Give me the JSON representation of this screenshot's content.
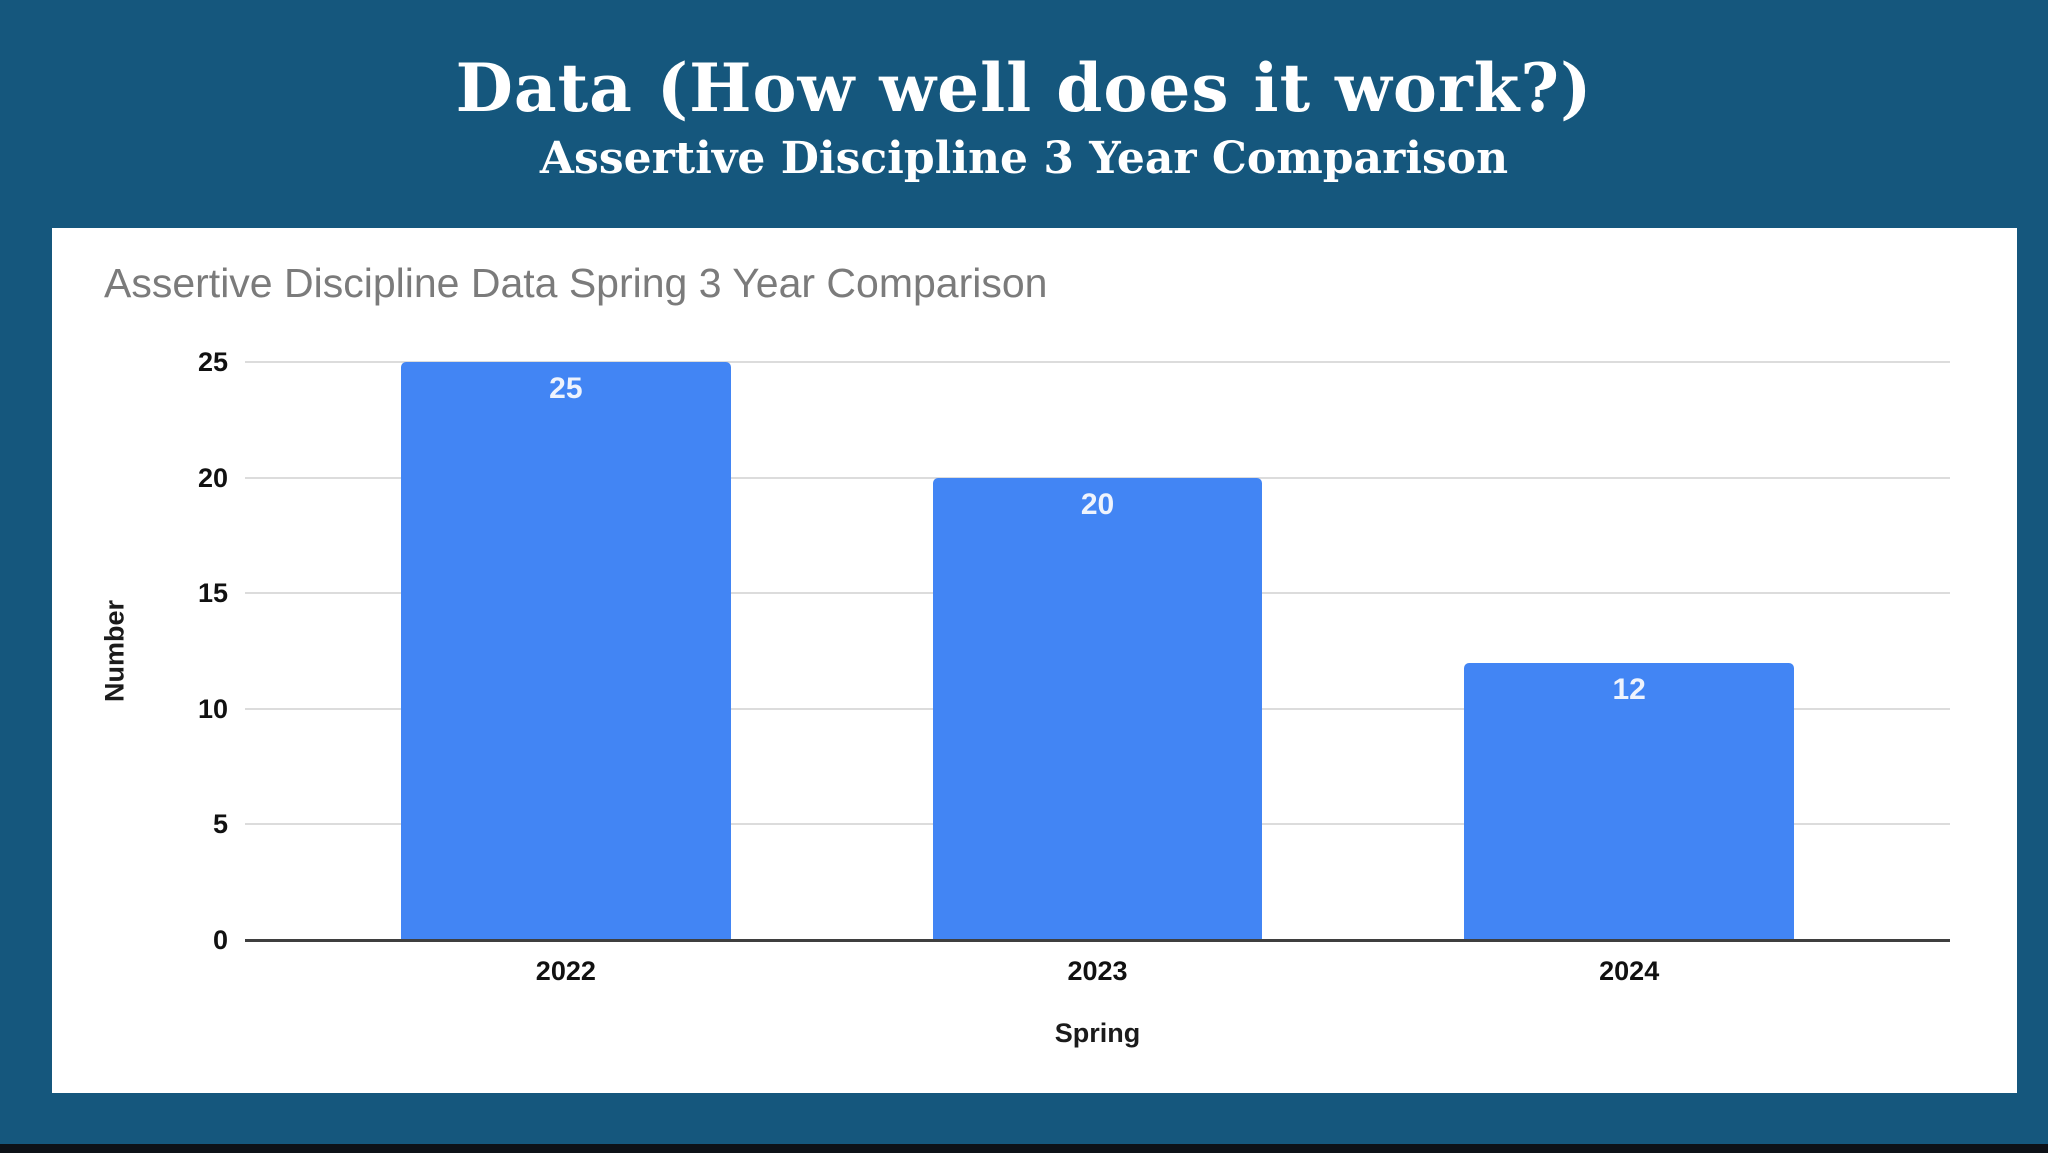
{
  "header": {
    "title": "Data (How well does it work?)",
    "subtitle": "Assertive Discipline 3 Year Comparison"
  },
  "chart_data": {
    "type": "bar",
    "title": "Assertive Discipline Data Spring 3 Year Comparison",
    "categories": [
      "2022",
      "2023",
      "2024"
    ],
    "values": [
      25,
      20,
      12
    ],
    "data_labels": [
      "25",
      "20",
      "12"
    ],
    "xlabel": "Spring",
    "ylabel": "Number",
    "ylim": [
      0,
      25
    ],
    "yticks": [
      0,
      5,
      10,
      15,
      20,
      25
    ],
    "grid": "horizontal",
    "legend_position": "none",
    "bar_color": "#4285F4"
  },
  "colors": {
    "slide_background": "#15577D",
    "panel_background": "#FFFFFF",
    "bar": "#4285F4",
    "gridline": "#DCDCDC",
    "axis_line": "#3F3F3F",
    "chart_title_text": "#7B7B7B",
    "tick_text": "#111111",
    "bar_label_text": "#EEF3FD",
    "header_text": "#FFFFFF",
    "bottom_strip": "#0D1117"
  }
}
